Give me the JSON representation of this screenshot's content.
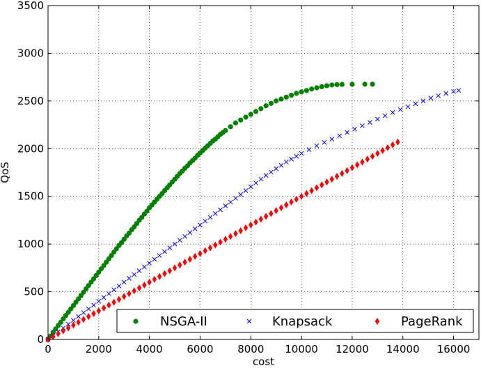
{
  "chart_data": {
    "type": "scatter",
    "xlabel": "cost",
    "ylabel": "QoS",
    "xlim": [
      0,
      17000
    ],
    "ylim": [
      0,
      3500
    ],
    "xticks": [
      0,
      2000,
      4000,
      6000,
      8000,
      10000,
      12000,
      14000,
      16000
    ],
    "yticks": [
      0,
      500,
      1000,
      1500,
      2000,
      2500,
      3000,
      3500
    ],
    "grid": true,
    "legend": {
      "placement": "bottom-right",
      "columns": 3
    },
    "series": [
      {
        "name": "NSGA-II",
        "marker": "circle",
        "color": "#008000",
        "points": [
          [
            0,
            0
          ],
          [
            100,
            35
          ],
          [
            200,
            75
          ],
          [
            300,
            110
          ],
          [
            400,
            145
          ],
          [
            500,
            180
          ],
          [
            600,
            215
          ],
          [
            700,
            250
          ],
          [
            800,
            285
          ],
          [
            900,
            320
          ],
          [
            1000,
            355
          ],
          [
            1100,
            390
          ],
          [
            1200,
            425
          ],
          [
            1300,
            460
          ],
          [
            1400,
            495
          ],
          [
            1500,
            530
          ],
          [
            1600,
            565
          ],
          [
            1700,
            600
          ],
          [
            1800,
            635
          ],
          [
            1900,
            670
          ],
          [
            2000,
            705
          ],
          [
            2100,
            740
          ],
          [
            2200,
            775
          ],
          [
            2300,
            810
          ],
          [
            2400,
            845
          ],
          [
            2500,
            880
          ],
          [
            2600,
            915
          ],
          [
            2700,
            950
          ],
          [
            2800,
            985
          ],
          [
            2900,
            1015
          ],
          [
            3000,
            1050
          ],
          [
            3100,
            1085
          ],
          [
            3200,
            1115
          ],
          [
            3300,
            1150
          ],
          [
            3400,
            1180
          ],
          [
            3500,
            1215
          ],
          [
            3600,
            1250
          ],
          [
            3700,
            1280
          ],
          [
            3800,
            1315
          ],
          [
            3900,
            1345
          ],
          [
            4000,
            1380
          ],
          [
            4100,
            1410
          ],
          [
            4200,
            1440
          ],
          [
            4300,
            1470
          ],
          [
            4400,
            1500
          ],
          [
            4500,
            1530
          ],
          [
            4600,
            1560
          ],
          [
            4700,
            1590
          ],
          [
            4800,
            1620
          ],
          [
            4900,
            1650
          ],
          [
            5000,
            1680
          ],
          [
            5100,
            1710
          ],
          [
            5200,
            1740
          ],
          [
            5300,
            1765
          ],
          [
            5400,
            1795
          ],
          [
            5500,
            1820
          ],
          [
            5600,
            1850
          ],
          [
            5700,
            1875
          ],
          [
            5800,
            1900
          ],
          [
            5900,
            1930
          ],
          [
            6000,
            1955
          ],
          [
            6100,
            1980
          ],
          [
            6200,
            2005
          ],
          [
            6300,
            2030
          ],
          [
            6400,
            2055
          ],
          [
            6500,
            2080
          ],
          [
            6600,
            2100
          ],
          [
            6700,
            2125
          ],
          [
            6800,
            2150
          ],
          [
            6900,
            2170
          ],
          [
            7000,
            2190
          ],
          [
            7200,
            2230
          ],
          [
            7400,
            2270
          ],
          [
            7600,
            2300
          ],
          [
            7800,
            2330
          ],
          [
            8000,
            2360
          ],
          [
            8200,
            2390
          ],
          [
            8400,
            2420
          ],
          [
            8600,
            2450
          ],
          [
            8800,
            2475
          ],
          [
            9000,
            2500
          ],
          [
            9200,
            2520
          ],
          [
            9400,
            2540
          ],
          [
            9600,
            2560
          ],
          [
            9800,
            2580
          ],
          [
            10000,
            2595
          ],
          [
            10200,
            2610
          ],
          [
            10400,
            2625
          ],
          [
            10600,
            2638
          ],
          [
            10800,
            2650
          ],
          [
            11000,
            2660
          ],
          [
            11200,
            2668
          ],
          [
            11400,
            2672
          ],
          [
            11600,
            2674
          ],
          [
            12000,
            2675
          ],
          [
            12500,
            2676
          ],
          [
            12800,
            2676
          ]
        ]
      },
      {
        "name": "Knapsack",
        "marker": "x",
        "color": "#0000ff",
        "points": [
          [
            0,
            0
          ],
          [
            200,
            40
          ],
          [
            400,
            80
          ],
          [
            600,
            120
          ],
          [
            800,
            160
          ],
          [
            1000,
            200
          ],
          [
            1200,
            240
          ],
          [
            1400,
            280
          ],
          [
            1600,
            320
          ],
          [
            1800,
            360
          ],
          [
            2000,
            400
          ],
          [
            2200,
            440
          ],
          [
            2400,
            480
          ],
          [
            2600,
            520
          ],
          [
            2800,
            560
          ],
          [
            3000,
            600
          ],
          [
            3200,
            640
          ],
          [
            3400,
            680
          ],
          [
            3600,
            720
          ],
          [
            3800,
            760
          ],
          [
            4000,
            800
          ],
          [
            4200,
            840
          ],
          [
            4400,
            880
          ],
          [
            4600,
            920
          ],
          [
            4800,
            960
          ],
          [
            5000,
            1000
          ],
          [
            5200,
            1040
          ],
          [
            5400,
            1080
          ],
          [
            5600,
            1120
          ],
          [
            5800,
            1160
          ],
          [
            6000,
            1200
          ],
          [
            6200,
            1240
          ],
          [
            6400,
            1280
          ],
          [
            6600,
            1320
          ],
          [
            6800,
            1360
          ],
          [
            7000,
            1400
          ],
          [
            7200,
            1440
          ],
          [
            7400,
            1480
          ],
          [
            7600,
            1520
          ],
          [
            7800,
            1560
          ],
          [
            8000,
            1600
          ],
          [
            8200,
            1640
          ],
          [
            8400,
            1680
          ],
          [
            8600,
            1720
          ],
          [
            8800,
            1755
          ],
          [
            9000,
            1790
          ],
          [
            9200,
            1825
          ],
          [
            9400,
            1860
          ],
          [
            9600,
            1890
          ],
          [
            9800,
            1920
          ],
          [
            10000,
            1950
          ],
          [
            10300,
            1990
          ],
          [
            10600,
            2030
          ],
          [
            10900,
            2065
          ],
          [
            11200,
            2100
          ],
          [
            11500,
            2135
          ],
          [
            11800,
            2170
          ],
          [
            12100,
            2205
          ],
          [
            12400,
            2240
          ],
          [
            12700,
            2275
          ],
          [
            13000,
            2310
          ],
          [
            13300,
            2345
          ],
          [
            13600,
            2380
          ],
          [
            13900,
            2410
          ],
          [
            14200,
            2440
          ],
          [
            14500,
            2470
          ],
          [
            14800,
            2500
          ],
          [
            15100,
            2530
          ],
          [
            15400,
            2555
          ],
          [
            15700,
            2580
          ],
          [
            16000,
            2600
          ],
          [
            16200,
            2610
          ]
        ]
      },
      {
        "name": "PageRank",
        "marker": "diamond",
        "color": "#ff0000",
        "points": [
          [
            0,
            0
          ],
          [
            200,
            30
          ],
          [
            400,
            60
          ],
          [
            600,
            90
          ],
          [
            800,
            120
          ],
          [
            1000,
            150
          ],
          [
            1200,
            180
          ],
          [
            1400,
            210
          ],
          [
            1600,
            240
          ],
          [
            1800,
            270
          ],
          [
            2000,
            300
          ],
          [
            2200,
            330
          ],
          [
            2400,
            360
          ],
          [
            2600,
            390
          ],
          [
            2800,
            420
          ],
          [
            3000,
            450
          ],
          [
            3200,
            480
          ],
          [
            3400,
            510
          ],
          [
            3600,
            540
          ],
          [
            3800,
            570
          ],
          [
            4000,
            600
          ],
          [
            4200,
            630
          ],
          [
            4400,
            660
          ],
          [
            4600,
            690
          ],
          [
            4800,
            720
          ],
          [
            5000,
            750
          ],
          [
            5200,
            780
          ],
          [
            5400,
            810
          ],
          [
            5600,
            840
          ],
          [
            5800,
            870
          ],
          [
            6000,
            900
          ],
          [
            6200,
            930
          ],
          [
            6400,
            960
          ],
          [
            6600,
            990
          ],
          [
            6800,
            1020
          ],
          [
            7000,
            1050
          ],
          [
            7200,
            1080
          ],
          [
            7400,
            1110
          ],
          [
            7600,
            1140
          ],
          [
            7800,
            1170
          ],
          [
            8000,
            1200
          ],
          [
            8200,
            1230
          ],
          [
            8400,
            1260
          ],
          [
            8600,
            1290
          ],
          [
            8800,
            1320
          ],
          [
            9000,
            1350
          ],
          [
            9200,
            1380
          ],
          [
            9400,
            1410
          ],
          [
            9600,
            1440
          ],
          [
            9800,
            1470
          ],
          [
            10000,
            1500
          ],
          [
            10200,
            1530
          ],
          [
            10400,
            1560
          ],
          [
            10600,
            1590
          ],
          [
            10800,
            1620
          ],
          [
            11000,
            1650
          ],
          [
            11200,
            1680
          ],
          [
            11400,
            1710
          ],
          [
            11600,
            1740
          ],
          [
            11800,
            1770
          ],
          [
            12000,
            1800
          ],
          [
            12200,
            1830
          ],
          [
            12400,
            1860
          ],
          [
            12600,
            1890
          ],
          [
            12800,
            1920
          ],
          [
            13000,
            1950
          ],
          [
            13200,
            1980
          ],
          [
            13400,
            2010
          ],
          [
            13600,
            2040
          ],
          [
            13800,
            2070
          ]
        ]
      }
    ]
  }
}
